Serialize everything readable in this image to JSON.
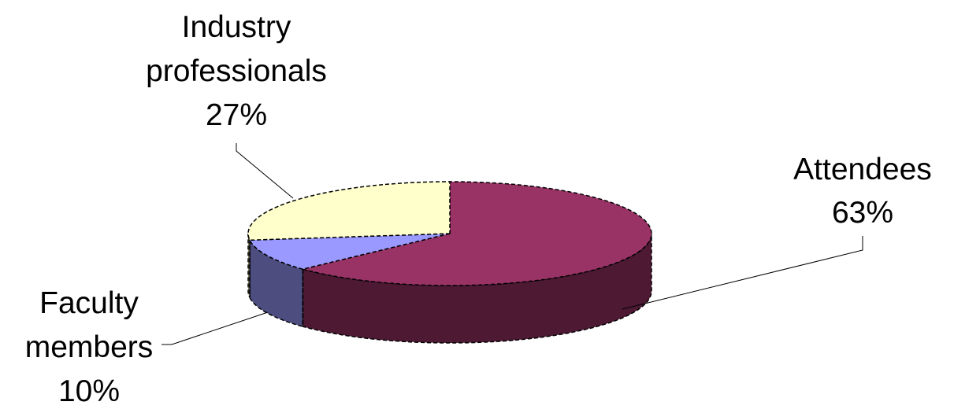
{
  "chart_data": {
    "type": "pie",
    "style": "3d-exploded-none",
    "title": "",
    "slices": [
      {
        "name": "Attendees",
        "label_line1": "Attendees",
        "label_line2": "",
        "percent_label": "63%",
        "value": 63,
        "color": "#993366",
        "side_color": "#4d1933"
      },
      {
        "name": "Faculty members",
        "label_line1": "Faculty",
        "label_line2": "members",
        "percent_label": "10%",
        "value": 10,
        "color": "#9999ff",
        "side_color": "#4d4d80"
      },
      {
        "name": "Industry professionals",
        "label_line1": "Industry",
        "label_line2": "professionals",
        "percent_label": "27%",
        "value": 27,
        "color": "#ffffcc",
        "side_color": "#808066"
      }
    ],
    "legend": "none",
    "labels": "outside-with-leader-lines"
  }
}
